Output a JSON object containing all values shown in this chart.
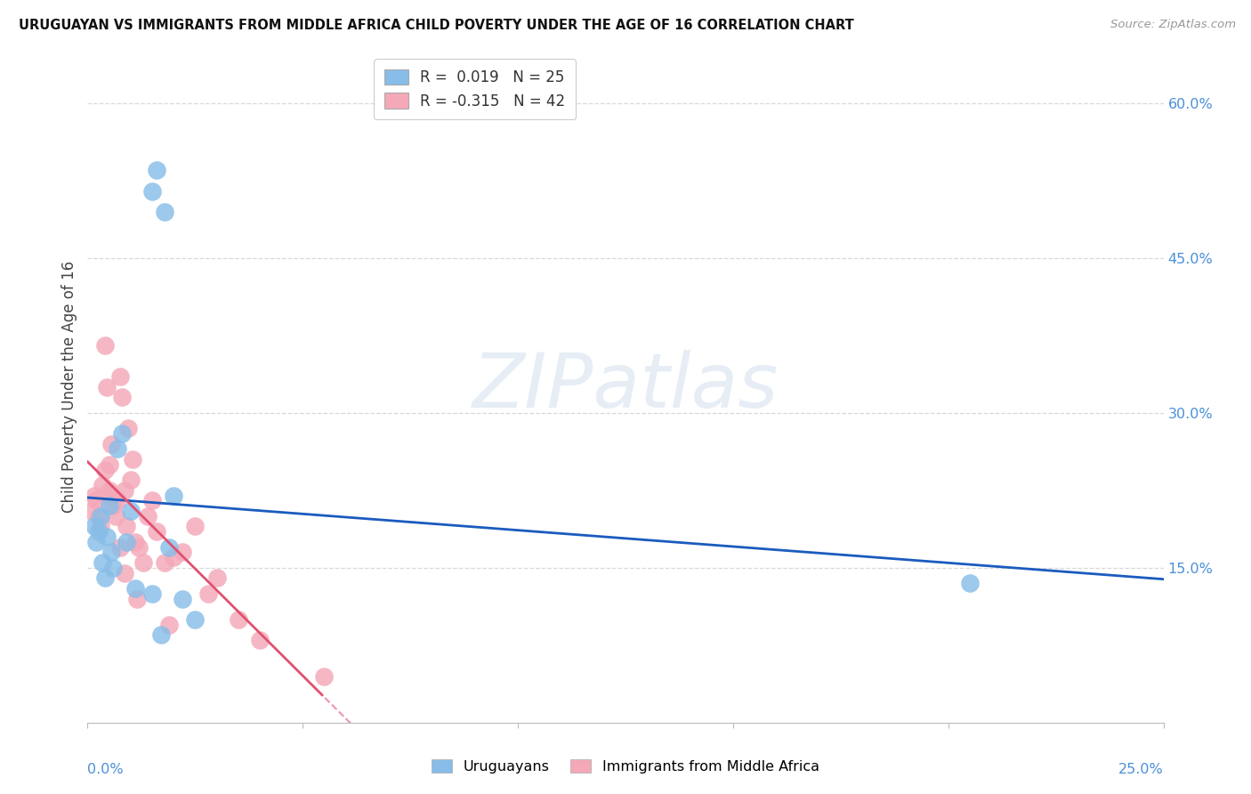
{
  "title": "URUGUAYAN VS IMMIGRANTS FROM MIDDLE AFRICA CHILD POVERTY UNDER THE AGE OF 16 CORRELATION CHART",
  "source": "Source: ZipAtlas.com",
  "ylabel": "Child Poverty Under the Age of 16",
  "legend_r1_prefix": "R = ",
  "legend_r1_val": " 0.019",
  "legend_r1_n": "  N = 25",
  "legend_r2_prefix": "R = ",
  "legend_r2_val": "-0.315",
  "legend_r2_n": "  N = 42",
  "uruguayan_color": "#87bde8",
  "immigrant_color": "#f4a8b8",
  "trend_blue": "#1a5bbf",
  "trend_pink": "#e05070",
  "watermark_text": "ZIPatlas",
  "uruguayan_x": [
    0.15,
    0.2,
    0.25,
    0.3,
    0.35,
    0.4,
    0.45,
    0.5,
    0.55,
    0.6,
    0.7,
    0.8,
    0.9,
    1.0,
    1.1,
    1.5,
    1.6,
    1.8,
    2.0,
    2.2,
    2.5,
    1.5,
    1.7,
    1.9,
    20.5
  ],
  "uruguayan_y": [
    19.0,
    17.5,
    18.5,
    20.0,
    15.5,
    14.0,
    18.0,
    21.0,
    16.5,
    15.0,
    26.5,
    28.0,
    17.5,
    20.5,
    13.0,
    51.5,
    53.5,
    49.5,
    22.0,
    12.0,
    10.0,
    12.5,
    8.5,
    17.0,
    13.5
  ],
  "immigrant_x": [
    0.1,
    0.15,
    0.2,
    0.25,
    0.3,
    0.35,
    0.4,
    0.4,
    0.5,
    0.5,
    0.55,
    0.6,
    0.65,
    0.7,
    0.75,
    0.8,
    0.85,
    0.9,
    0.95,
    1.0,
    1.05,
    1.1,
    1.2,
    1.3,
    1.4,
    1.5,
    1.6,
    1.8,
    2.0,
    2.2,
    2.5,
    2.8,
    3.0,
    3.5,
    0.45,
    0.55,
    0.75,
    0.85,
    1.15,
    1.9,
    4.0,
    5.5
  ],
  "immigrant_y": [
    20.5,
    22.0,
    21.5,
    20.0,
    19.0,
    23.0,
    24.5,
    36.5,
    22.5,
    25.0,
    27.0,
    21.0,
    20.0,
    21.5,
    33.5,
    31.5,
    22.5,
    19.0,
    28.5,
    23.5,
    25.5,
    17.5,
    17.0,
    15.5,
    20.0,
    21.5,
    18.5,
    15.5,
    16.0,
    16.5,
    19.0,
    12.5,
    14.0,
    10.0,
    32.5,
    22.0,
    17.0,
    14.5,
    12.0,
    9.5,
    8.0,
    4.5
  ],
  "xmin": 0.0,
  "xmax": 25.0,
  "ymin": 0.0,
  "ymax": 65.0,
  "ytick_vals": [
    15.0,
    30.0,
    45.0,
    60.0
  ],
  "ytick_labels": [
    "15.0%",
    "30.0%",
    "45.0%",
    "60.0%"
  ],
  "xtick_label_color": "#4a90d9",
  "ytick_label_color": "#4a90d9",
  "grid_color": "#d8d8d8",
  "title_color": "#111111",
  "source_color": "#999999",
  "axis_label_color": "#444444"
}
